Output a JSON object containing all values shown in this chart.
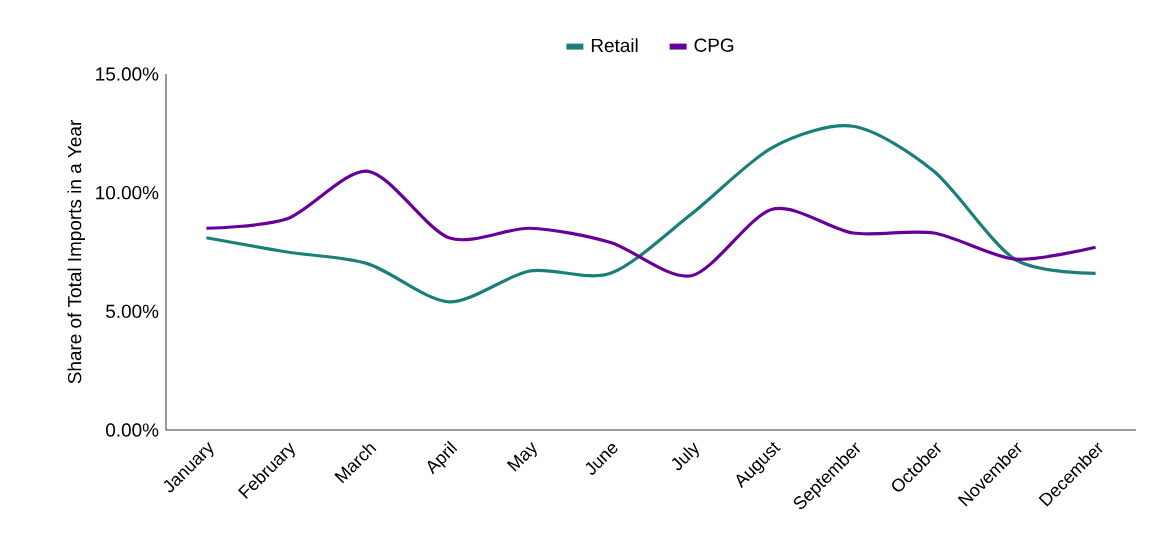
{
  "chart_data": {
    "type": "line",
    "ylabel": "Share of Total Imports in a Year",
    "categories": [
      "January",
      "February",
      "March",
      "April",
      "May",
      "June",
      "July",
      "August",
      "September",
      "October",
      "November",
      "December"
    ],
    "series": [
      {
        "name": "Retail",
        "color": "#1b7f79",
        "values": [
          8.1,
          7.5,
          7.0,
          5.4,
          6.7,
          6.6,
          9.1,
          11.9,
          12.8,
          10.9,
          7.2,
          6.6
        ]
      },
      {
        "name": "CPG",
        "color": "#660099",
        "values": [
          8.5,
          8.9,
          10.9,
          8.1,
          8.5,
          7.9,
          6.5,
          9.3,
          8.3,
          8.3,
          7.2,
          7.7
        ]
      }
    ],
    "ylim": [
      0,
      15
    ],
    "yticks": [
      {
        "value": 0,
        "label": "0.00%"
      },
      {
        "value": 5,
        "label": "5.00%"
      },
      {
        "value": 10,
        "label": "10.00%"
      },
      {
        "value": 15,
        "label": "15.00%"
      }
    ],
    "grid": false,
    "legend": "top",
    "marker": "none",
    "line_style": "solid"
  }
}
